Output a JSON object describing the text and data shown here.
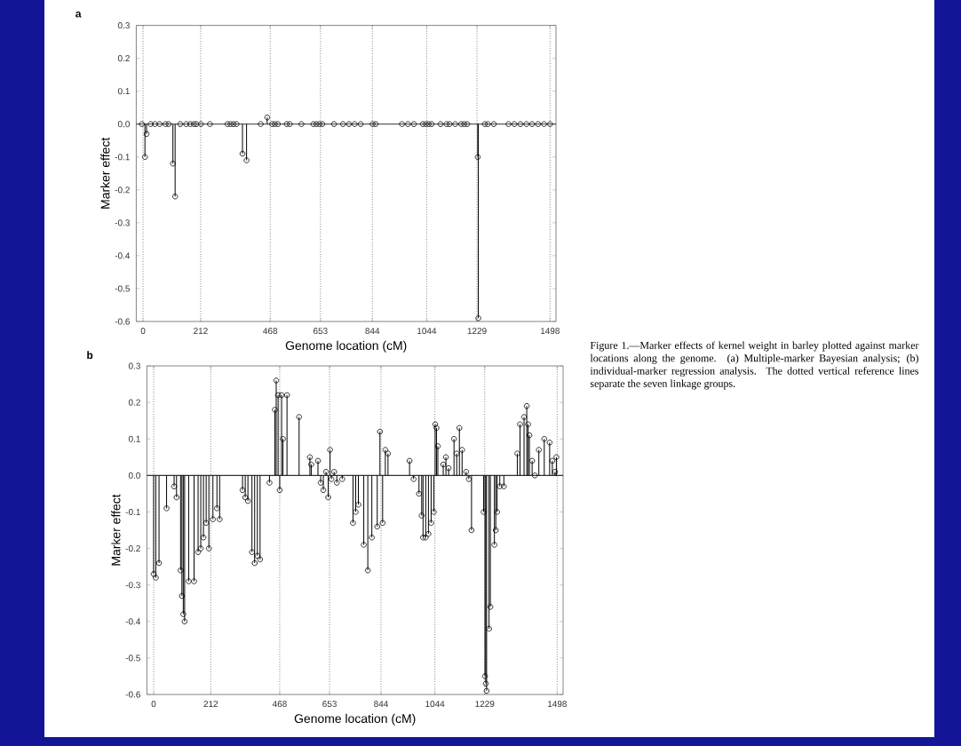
{
  "chart_data": [
    {
      "type": "lollipop",
      "title": "a",
      "xlabel": "Genome location (cM)",
      "ylabel": "Marker effect",
      "x": [
        -4,
        7,
        13,
        28,
        44,
        61,
        83,
        94,
        110,
        118,
        137,
        159,
        174,
        187,
        196,
        213,
        246,
        311,
        322,
        333,
        344,
        366,
        381,
        433,
        457,
        475,
        485,
        496,
        529,
        540,
        583,
        627,
        638,
        649,
        660,
        703,
        736,
        758,
        779,
        801,
        845,
        856,
        953,
        975,
        997,
        1030,
        1041,
        1051,
        1062,
        1095,
        1117,
        1128,
        1149,
        1171,
        1182,
        1193,
        1232,
        1234,
        1258,
        1269,
        1291,
        1345,
        1367,
        1389,
        1411,
        1432,
        1454,
        1476,
        1498
      ],
      "series": [
        {
          "color": "#000000",
          "values": [
            0,
            -0.1,
            -0.03,
            0,
            0,
            0,
            0,
            0,
            -0.12,
            -0.22,
            0,
            0,
            0,
            0,
            0,
            0,
            0,
            0,
            0,
            0,
            0,
            -0.09,
            -0.11,
            0,
            0.02,
            0,
            0,
            0,
            0,
            0,
            0,
            0,
            0,
            0,
            0,
            0,
            0,
            0,
            0,
            0,
            0,
            0,
            0,
            0,
            0,
            0,
            0,
            0,
            0,
            0,
            0,
            0,
            0,
            0,
            0,
            0,
            -0.1,
            -0.59,
            0,
            0,
            0,
            0,
            0,
            0,
            0,
            0,
            0,
            0,
            0
          ]
        }
      ],
      "xlim": [
        -25,
        1520
      ],
      "ylim": [
        -0.6,
        0.3
      ],
      "xticks": [
        0,
        212,
        468,
        653,
        844,
        1044,
        1229,
        1498
      ],
      "yticks": [
        0.3,
        0.2,
        0.1,
        {
          "value": 0,
          "label": "0.0"
        },
        -0.1,
        -0.2,
        -0.3,
        -0.4,
        -0.5,
        -0.6
      ],
      "grid": "x",
      "marker": "circle",
      "ref_lines": [
        {
          "axis": "y",
          "value": 0
        }
      ]
    },
    {
      "type": "lollipop",
      "title": "b",
      "xlabel": "Genome location (cM)",
      "ylabel": "Marker effect",
      "x": [
        0,
        8,
        20,
        48,
        76,
        85,
        100,
        105,
        110,
        115,
        130,
        150,
        165,
        175,
        185,
        195,
        205,
        220,
        235,
        245,
        330,
        340,
        350,
        365,
        375,
        385,
        395,
        430,
        450,
        455,
        462,
        468,
        475,
        480,
        495,
        540,
        580,
        585,
        610,
        620,
        630,
        640,
        648,
        655,
        660,
        670,
        680,
        700,
        740,
        750,
        760,
        780,
        795,
        810,
        830,
        840,
        850,
        860,
        870,
        950,
        965,
        985,
        995,
        1000,
        1010,
        1020,
        1030,
        1040,
        1045,
        1050,
        1055,
        1075,
        1085,
        1095,
        1115,
        1125,
        1135,
        1145,
        1160,
        1170,
        1180,
        1225,
        1230,
        1233,
        1236,
        1245,
        1250,
        1265,
        1270,
        1275,
        1285,
        1300,
        1350,
        1360,
        1375,
        1385,
        1390,
        1395,
        1405,
        1415,
        1430,
        1450,
        1470,
        1480,
        1490,
        1495
      ],
      "series": [
        {
          "color": "#000000",
          "values": [
            -0.27,
            -0.28,
            -0.24,
            -0.09,
            -0.03,
            -0.06,
            -0.26,
            -0.33,
            -0.38,
            -0.4,
            -0.29,
            -0.29,
            -0.21,
            -0.2,
            -0.17,
            -0.13,
            -0.2,
            -0.12,
            -0.09,
            -0.12,
            -0.04,
            -0.06,
            -0.07,
            -0.21,
            -0.24,
            -0.22,
            -0.23,
            -0.02,
            0.18,
            0.26,
            0.22,
            -0.04,
            0.22,
            0.1,
            0.22,
            0.16,
            0.05,
            0.03,
            0.04,
            -0.02,
            -0.04,
            0.01,
            -0.06,
            0.07,
            -0.01,
            0.01,
            -0.02,
            -0.01,
            -0.13,
            -0.1,
            -0.08,
            -0.19,
            -0.26,
            -0.17,
            -0.14,
            0.12,
            -0.13,
            0.07,
            0.06,
            0.04,
            -0.01,
            -0.05,
            -0.11,
            -0.17,
            -0.17,
            -0.16,
            -0.13,
            -0.1,
            0.14,
            0.13,
            0.08,
            0.03,
            0.05,
            0.02,
            0.1,
            0.06,
            0.13,
            0.07,
            0.01,
            -0.01,
            -0.15,
            -0.1,
            -0.55,
            -0.57,
            -0.59,
            -0.42,
            -0.36,
            -0.19,
            -0.15,
            -0.1,
            -0.03,
            -0.03,
            0.06,
            0.14,
            0.16,
            0.19,
            0.14,
            0.11,
            0.04,
            0,
            0.07,
            0.1,
            0.09,
            0.04,
            0.01,
            0.05
          ]
        }
      ],
      "xlim": [
        -25,
        1520
      ],
      "ylim": [
        -0.6,
        0.3
      ],
      "xticks": [
        0,
        212,
        468,
        653,
        844,
        1044,
        1229,
        1498
      ],
      "yticks": [
        0.3,
        0.2,
        0.1,
        {
          "value": 0,
          "label": "0.0"
        },
        -0.1,
        -0.2,
        -0.3,
        -0.4,
        -0.5,
        -0.6
      ],
      "grid": "x",
      "marker": "circle",
      "ref_lines": [
        {
          "axis": "y",
          "value": 0
        }
      ],
      "annotations": [
        "Figure 1.—Marker effects of kernel weight in barley plotted against marker locations along the genome. (a) Multiple-marker Bayesian analysis; (b) individual-marker regression analysis. The dotted vertical reference lines separate the seven linkage groups."
      ]
    }
  ]
}
